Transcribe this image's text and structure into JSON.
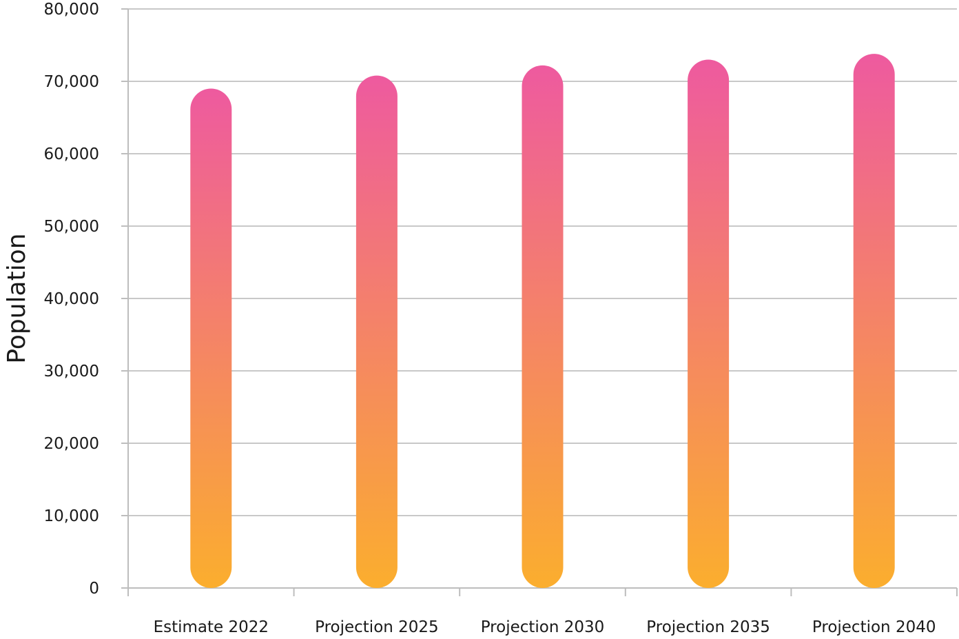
{
  "chart_data": {
    "type": "bar",
    "categories": [
      "Estimate 2022",
      "Projection 2025",
      "Projection 2030",
      "Projection 2035",
      "Projection 2040"
    ],
    "values": [
      69000,
      70800,
      72200,
      73000,
      73800
    ],
    "title": "",
    "xlabel": "",
    "ylabel": "Population",
    "ylim": [
      0,
      80000
    ],
    "yticks": [
      0,
      10000,
      20000,
      30000,
      40000,
      50000,
      60000,
      70000,
      80000
    ],
    "ytick_labels": [
      "0",
      "10,000",
      "20,000",
      "30,000",
      "40,000",
      "50,000",
      "60,000",
      "70,000",
      "80,000"
    ],
    "grid": true,
    "legend": "none",
    "colors": {
      "gradient_top": "#EE5A9F",
      "gradient_bottom": "#FBAE2E",
      "grid": "#c8c8c8",
      "axis": "#bdbdbd"
    }
  }
}
